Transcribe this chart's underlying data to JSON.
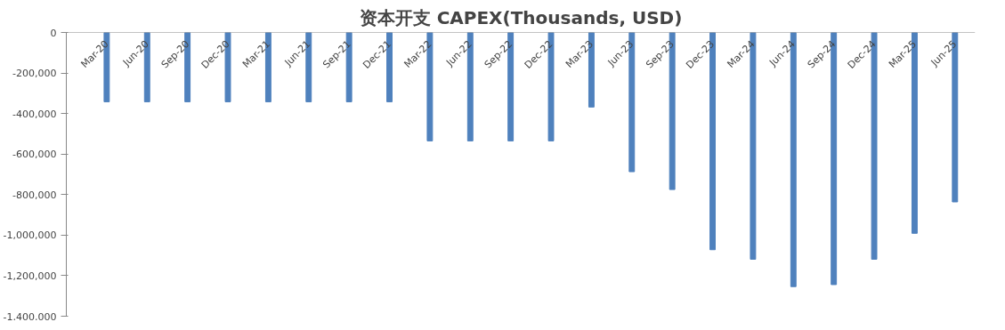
{
  "chart_data": {
    "type": "bar",
    "title": "资本开支 CAPEX(Thousands, USD)",
    "categories": [
      "Mar-20",
      "Jun-20",
      "Sep-20",
      "Dec-20",
      "Mar-21",
      "Jun-21",
      "Sep-21",
      "Dec-21",
      "Mar-22",
      "Jun-22",
      "Sep-22",
      "Dec-22",
      "Mar-23",
      "Jun-23",
      "Sep-23",
      "Dec-23",
      "Mar-24",
      "Jun-24",
      "Sep-24",
      "Dec-24",
      "Mar-25",
      "Jun-25"
    ],
    "series": [
      {
        "color": "#4f81bd",
        "values": [
          -342000,
          -342000,
          -342000,
          -342000,
          -342000,
          -342000,
          -342000,
          -342000,
          -535000,
          -535000,
          -535000,
          -535000,
          -368000,
          -687000,
          -775000,
          -1072000,
          -1119000,
          -1254000,
          -1244000,
          -1119000,
          -991000,
          -836000
        ]
      }
    ],
    "ylim": [
      -1400000,
      0
    ],
    "yticks": [
      {
        "value": -1400000,
        "label": "-1,400,000"
      },
      {
        "value": -1200000,
        "label": "-1,200,000"
      },
      {
        "value": -1000000,
        "label": "-1,000,000"
      },
      {
        "value": -800000,
        "label": "-800,000"
      },
      {
        "value": -600000,
        "label": "-600,000"
      },
      {
        "value": -400000,
        "label": "-400,000"
      },
      {
        "value": -200000,
        "label": "-200,000"
      },
      0
    ],
    "grid": false
  }
}
